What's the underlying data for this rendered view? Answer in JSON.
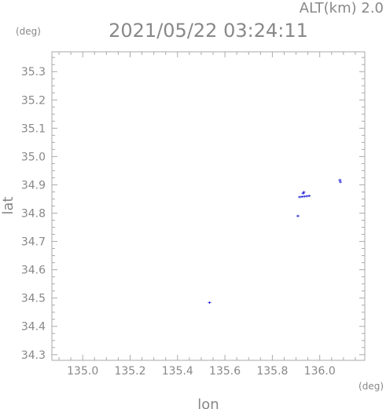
{
  "chart_data": {
    "type": "scatter",
    "title": "2021/05/22 03:24:11",
    "altitude_label": "ALT(km) 2.0",
    "xlabel": "lon",
    "ylabel": "lat",
    "x_unit": "(deg)",
    "y_unit": "(deg)",
    "xlim": [
      134.87,
      136.19
    ],
    "ylim": [
      34.28,
      35.37
    ],
    "x_ticks": [
      135.0,
      135.2,
      135.4,
      135.6,
      135.8,
      136.0
    ],
    "x_tick_labels": [
      "135.0",
      "135.2",
      "135.4",
      "135.6",
      "135.8",
      "136.0"
    ],
    "y_ticks": [
      34.3,
      34.4,
      34.5,
      34.6,
      34.7,
      34.8,
      34.9,
      35.0,
      35.1,
      35.2,
      35.3
    ],
    "y_tick_labels": [
      "34.3",
      "34.4",
      "34.5",
      "34.6",
      "34.7",
      "34.8",
      "34.9",
      "35.0",
      "35.1",
      "35.2",
      "35.3"
    ],
    "grid": false,
    "marker_color": "#2a2ad8",
    "points": [
      {
        "x": 135.535,
        "y": 34.484
      },
      {
        "x": 135.908,
        "y": 34.79
      },
      {
        "x": 135.915,
        "y": 34.857
      },
      {
        "x": 135.925,
        "y": 34.858
      },
      {
        "x": 135.935,
        "y": 34.859
      },
      {
        "x": 135.945,
        "y": 34.86
      },
      {
        "x": 135.955,
        "y": 34.861
      },
      {
        "x": 135.93,
        "y": 34.87
      },
      {
        "x": 135.933,
        "y": 34.874
      },
      {
        "x": 136.085,
        "y": 34.917
      },
      {
        "x": 136.087,
        "y": 34.91
      }
    ]
  }
}
